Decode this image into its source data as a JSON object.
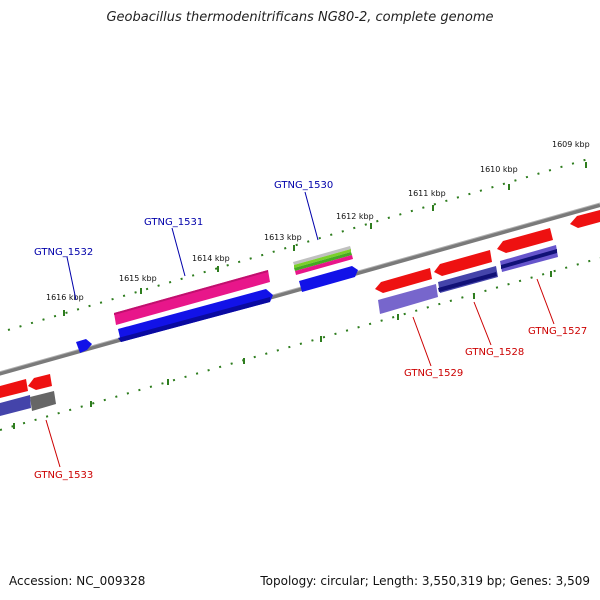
{
  "title": "Geobacillus thermodenitrificans NG80-2, complete genome",
  "footer": {
    "accession": "Accession: NC_009328",
    "summary": "Topology: circular; Length: 3,550,319 bp; Genes: 3,509"
  },
  "scale_labels": [
    "1609 kbp",
    "1610 kbp",
    "1611 kbp",
    "1612 kbp",
    "1613 kbp",
    "1614 kbp",
    "1615 kbp",
    "1616 kbp"
  ],
  "gene_labels": {
    "forward": [
      "GTNG_1530",
      "GTNG_1531",
      "GTNG_1532"
    ],
    "reverse": [
      "GTNG_1527",
      "GTNG_1528",
      "GTNG_1529",
      "GTNG_1533"
    ]
  },
  "colors": {
    "forward_label": "#0000aa",
    "reverse_label": "#cc0000",
    "tick": "#2e7d1e",
    "backbone": "#808080"
  }
}
